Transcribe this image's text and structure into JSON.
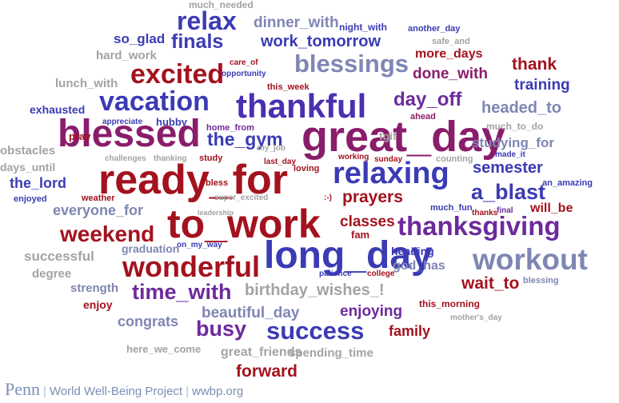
{
  "colors": {
    "gray": "#a3a3a3",
    "slate": "#7f86b3",
    "blue": "#3b3bb5",
    "indigo": "#4a2fb0",
    "purple": "#6d2a9c",
    "plum": "#8a1d6b",
    "red": "#a3121e",
    "footer": "#7b8fb5"
  },
  "words": [
    {
      "text": "much_needed",
      "color": "gray"
    },
    {
      "text": "relax",
      "color": "blue"
    },
    {
      "text": "dinner_with",
      "color": "slate"
    },
    {
      "text": "night_with",
      "color": "blue"
    },
    {
      "text": "another_day",
      "color": "blue"
    },
    {
      "text": "so_glad",
      "color": "blue"
    },
    {
      "text": "finals",
      "color": "blue"
    },
    {
      "text": "work_tomorrow",
      "color": "blue"
    },
    {
      "text": "safe_and",
      "color": "gray"
    },
    {
      "text": "hard_work",
      "color": "gray"
    },
    {
      "text": "blessings",
      "color": "slate"
    },
    {
      "text": "more_days",
      "color": "red"
    },
    {
      "text": "excited",
      "color": "red"
    },
    {
      "text": "care_of",
      "color": "red"
    },
    {
      "text": "opportunity",
      "color": "blue"
    },
    {
      "text": "thank",
      "color": "red"
    },
    {
      "text": "lunch_with",
      "color": "gray"
    },
    {
      "text": "done_with",
      "color": "plum"
    },
    {
      "text": "this_week",
      "color": "red"
    },
    {
      "text": "training",
      "color": "blue"
    },
    {
      "text": "vacation",
      "color": "blue"
    },
    {
      "text": "thankful",
      "color": "indigo"
    },
    {
      "text": "day_off",
      "color": "purple"
    },
    {
      "text": "exhausted",
      "color": "blue"
    },
    {
      "text": "headed_to",
      "color": "slate"
    },
    {
      "text": "appreciate",
      "color": "blue"
    },
    {
      "text": "hubby",
      "color": "blue"
    },
    {
      "text": "ahead",
      "color": "plum"
    },
    {
      "text": "blessed",
      "color": "plum"
    },
    {
      "text": "great_day",
      "color": "plum"
    },
    {
      "text": "pray",
      "color": "red"
    },
    {
      "text": "home_from",
      "color": "purple"
    },
    {
      "text": "much_to_do",
      "color": "gray"
    },
    {
      "text": "the_gym",
      "color": "blue"
    },
    {
      "text": "tgif",
      "color": "gray"
    },
    {
      "text": "studying_for",
      "color": "slate"
    },
    {
      "text": "obstacles",
      "color": "gray"
    },
    {
      "text": "challenges",
      "color": "gray"
    },
    {
      "text": "thanking",
      "color": "gray"
    },
    {
      "text": "my_job",
      "color": "gray"
    },
    {
      "text": "working",
      "color": "red"
    },
    {
      "text": "sunday",
      "color": "red"
    },
    {
      "text": "counting",
      "color": "gray"
    },
    {
      "text": "made_it",
      "color": "blue"
    },
    {
      "text": "days_until",
      "color": "gray"
    },
    {
      "text": "study",
      "color": "red"
    },
    {
      "text": "last_day",
      "color": "red"
    },
    {
      "text": "semester",
      "color": "blue"
    },
    {
      "text": "ready_for",
      "color": "red"
    },
    {
      "text": "relaxing",
      "color": "blue"
    },
    {
      "text": "loving",
      "color": "red"
    },
    {
      "text": "the_lord",
      "color": "blue"
    },
    {
      "text": "bless",
      "color": "red"
    },
    {
      "text": "a_blast",
      "color": "blue"
    },
    {
      "text": "an_amazing",
      "color": "blue"
    },
    {
      "text": "enjoyed",
      "color": "blue"
    },
    {
      "text": "weather",
      "color": "red"
    },
    {
      "text": "super_excited",
      "color": "gray"
    },
    {
      "text": ":-)",
      "color": "red"
    },
    {
      "text": "prayers",
      "color": "red"
    },
    {
      "text": "leadership",
      "color": "gray"
    },
    {
      "text": "much_fun",
      "color": "blue"
    },
    {
      "text": "thanks",
      "color": "red"
    },
    {
      "text": "final",
      "color": "purple"
    },
    {
      "text": "everyone_for",
      "color": "slate"
    },
    {
      "text": "will_be",
      "color": "red"
    },
    {
      "text": "classes",
      "color": "red"
    },
    {
      "text": "weekend",
      "color": "red"
    },
    {
      "text": "to_work",
      "color": "red"
    },
    {
      "text": "thanksgiving",
      "color": "purple"
    },
    {
      "text": "fam",
      "color": "red"
    },
    {
      "text": "on_my_way",
      "color": "blue"
    },
    {
      "text": "graduation",
      "color": "slate"
    },
    {
      "text": "successful",
      "color": "gray"
    },
    {
      "text": "heading",
      "color": "blue"
    },
    {
      "text": "long_day",
      "color": "blue"
    },
    {
      "text": "workout",
      "color": "slate"
    },
    {
      "text": "god_has",
      "color": "slate"
    },
    {
      "text": "wonderful",
      "color": "red"
    },
    {
      "text": "patience",
      "color": "blue"
    },
    {
      "text": "college",
      "color": "red"
    },
    {
      "text": "degree",
      "color": "gray"
    },
    {
      "text": "strength",
      "color": "slate"
    },
    {
      "text": "time_with",
      "color": "purple"
    },
    {
      "text": "birthday_wishes_!",
      "color": "gray"
    },
    {
      "text": "blessing",
      "color": "slate"
    },
    {
      "text": "wait_to",
      "color": "red"
    },
    {
      "text": "enjoy",
      "color": "red"
    },
    {
      "text": "this_morning",
      "color": "red"
    },
    {
      "text": "beautiful_day",
      "color": "slate"
    },
    {
      "text": "enjoying",
      "color": "purple"
    },
    {
      "text": "mother's_day",
      "color": "gray"
    },
    {
      "text": "congrats",
      "color": "slate"
    },
    {
      "text": "busy",
      "color": "purple"
    },
    {
      "text": "success",
      "color": "blue"
    },
    {
      "text": "family",
      "color": "red"
    },
    {
      "text": "here_we_come",
      "color": "gray"
    },
    {
      "text": "great_friends",
      "color": "gray"
    },
    {
      "text": "spending_time",
      "color": "gray"
    },
    {
      "text": "forward",
      "color": "red"
    }
  ],
  "footer": {
    "brand": "Penn",
    "project": "World Well-Being Project",
    "site": "wwbp.org"
  }
}
